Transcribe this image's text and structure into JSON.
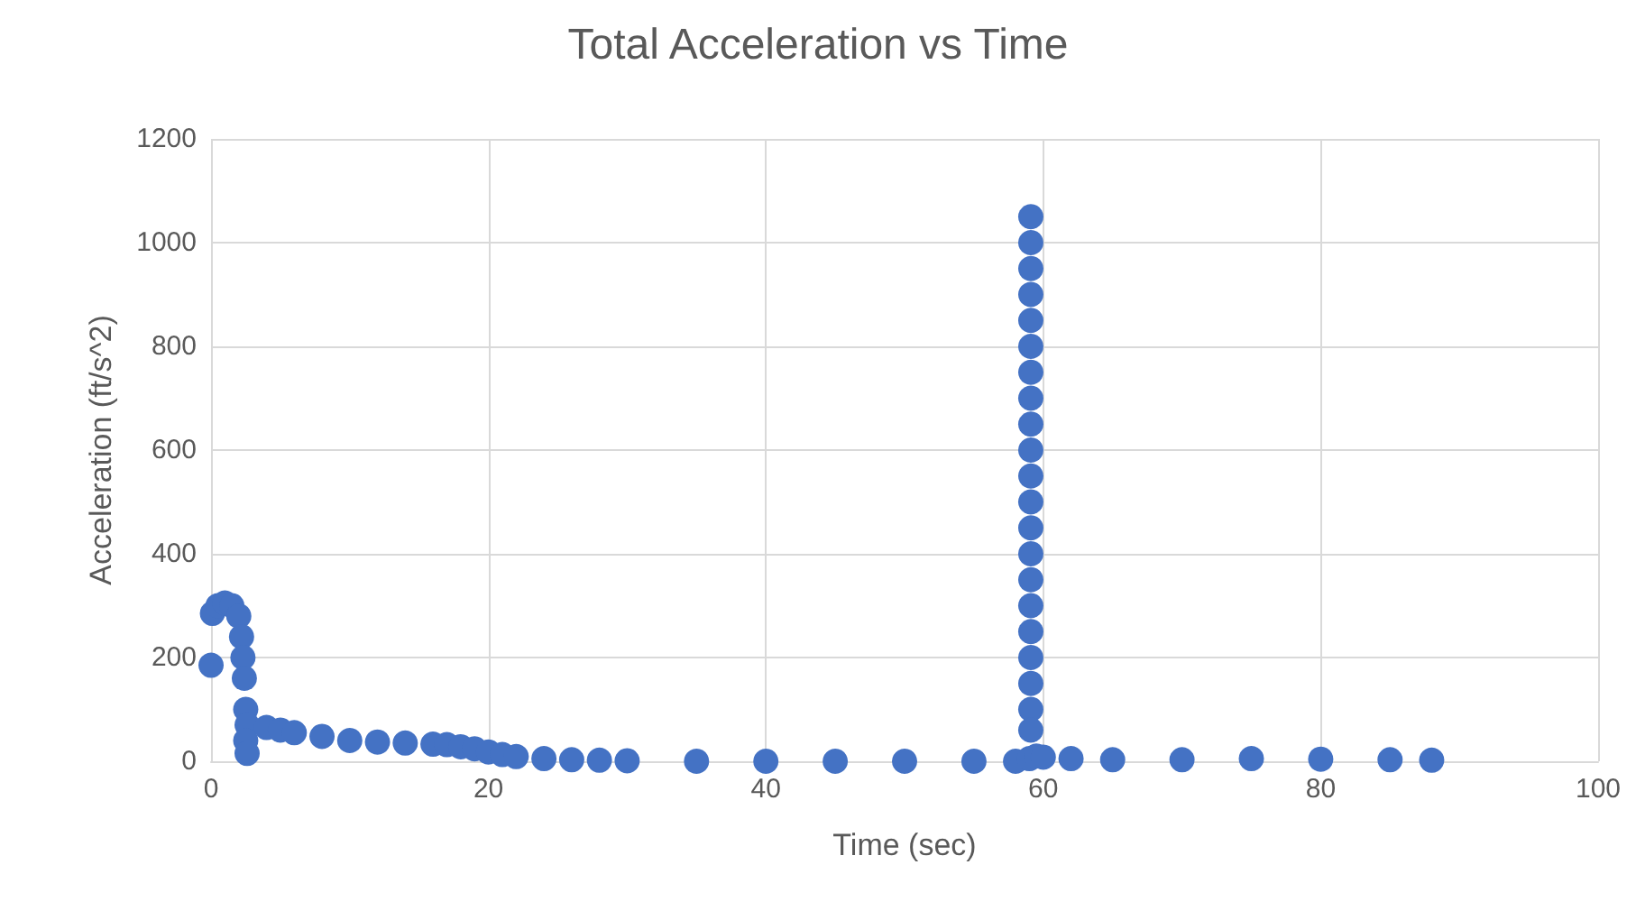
{
  "chart_data": {
    "type": "scatter",
    "title": "Total Acceleration vs Time",
    "xlabel": "Time (sec)",
    "ylabel": "Acceleration (ft/s^2)",
    "xlim": [
      0,
      100
    ],
    "xticks": [
      0,
      20,
      40,
      60,
      80,
      100
    ],
    "ylim": [
      0,
      1200
    ],
    "yticks": [
      0,
      200,
      400,
      600,
      800,
      1000,
      1200
    ],
    "grid": true,
    "marker": "circle",
    "series": [
      {
        "color": "#4472c4",
        "x": [
          0,
          0.1,
          0.5,
          1,
          1.5,
          2,
          2.2,
          2.3,
          2.4,
          2.5,
          2.6,
          2.5,
          2.6,
          4,
          5,
          6,
          8,
          10,
          12,
          14,
          16,
          17,
          18,
          19,
          20,
          21,
          22,
          24,
          26,
          28,
          30,
          35,
          40,
          45,
          50,
          55,
          58,
          59,
          59.1,
          59.1,
          59.1,
          59.1,
          59.1,
          59.1,
          59.1,
          59.1,
          59.1,
          59.1,
          59.1,
          59.1,
          59.1,
          59.1,
          59.1,
          59.1,
          59.1,
          59.1,
          59.1,
          59.1,
          59.1,
          59.5,
          60,
          62,
          65,
          70,
          75,
          80,
          85,
          88
        ],
        "values": [
          185,
          285,
          300,
          305,
          300,
          280,
          240,
          200,
          160,
          100,
          70,
          40,
          15,
          65,
          60,
          55,
          48,
          40,
          37,
          35,
          33,
          32,
          28,
          24,
          18,
          13,
          9,
          5,
          3,
          2,
          1,
          0,
          0,
          0,
          0,
          0,
          0,
          5,
          1050,
          1000,
          950,
          900,
          850,
          800,
          750,
          700,
          650,
          600,
          550,
          500,
          450,
          400,
          350,
          300,
          250,
          200,
          150,
          100,
          60,
          10,
          8,
          5,
          3,
          3,
          5,
          4,
          3,
          2
        ]
      }
    ]
  }
}
